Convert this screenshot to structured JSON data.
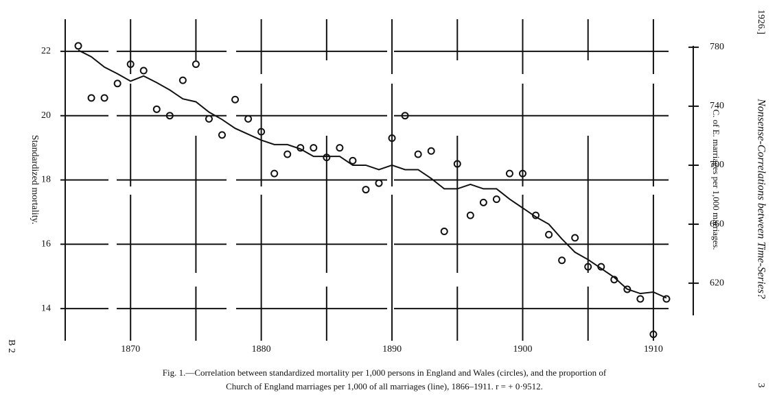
{
  "page_header": "1926.]",
  "running_title": "Nonsense-Correlations between Time-Series?",
  "signature": "B 2",
  "page_number": "3",
  "caption": [
    "Fig. 1.—Correlation between standardized mortality per 1,000 persons in England and Wales (circles), and the proportion of",
    "Church of England marriages per 1,000 of all marriages (line), 1866–1911.   r = + 0·9512."
  ],
  "chart_data": {
    "type": "line",
    "y_label": "Standardized mortality.",
    "y2_label": "C. of E. marriages per 1,000 marriages.",
    "x": [
      1866,
      1867,
      1868,
      1869,
      1870,
      1871,
      1872,
      1873,
      1874,
      1875,
      1876,
      1877,
      1878,
      1879,
      1880,
      1881,
      1882,
      1883,
      1884,
      1885,
      1886,
      1887,
      1888,
      1889,
      1890,
      1891,
      1892,
      1893,
      1894,
      1895,
      1896,
      1897,
      1898,
      1899,
      1900,
      1901,
      1902,
      1903,
      1904,
      1905,
      1906,
      1907,
      1908,
      1909,
      1910,
      1911
    ],
    "xlim": [
      1865,
      1912
    ],
    "xticks": [
      1870,
      1880,
      1890,
      1900,
      1910
    ],
    "x_minor_grid": [
      1875,
      1885,
      1895,
      1905
    ],
    "ylim": [
      13,
      23
    ],
    "yticks": [
      14,
      16,
      18,
      20,
      22
    ],
    "y2lim": [
      581,
      799
    ],
    "y2ticks": [
      620,
      660,
      700,
      740,
      780
    ],
    "grid": true,
    "series": [
      {
        "type": "scatter",
        "color": "#111111",
        "values": [
          22.17,
          20.55,
          20.55,
          21.0,
          21.6,
          21.4,
          20.2,
          20.0,
          21.1,
          21.6,
          19.9,
          19.4,
          20.5,
          19.9,
          19.5,
          18.2,
          18.8,
          19.0,
          19.0,
          18.7,
          19.0,
          18.6,
          17.7,
          17.9,
          19.3,
          20.0,
          18.8,
          18.9,
          16.4,
          18.5,
          16.9,
          17.3,
          17.4,
          18.2,
          18.2,
          16.9,
          16.3,
          15.5,
          16.2,
          15.3,
          15.3,
          14.9,
          14.6,
          14.3,
          13.2,
          14.3
        ]
      },
      {
        "type": "line",
        "axis": "y2",
        "color": "#111111",
        "values": [
          778,
          773.5,
          766.5,
          762,
          757,
          760.5,
          756,
          751,
          745,
          743,
          736,
          731,
          725,
          721,
          717,
          714,
          714,
          711,
          706,
          706,
          706,
          700,
          700,
          697,
          700,
          697,
          697,
          691,
          684,
          684,
          687,
          684,
          684,
          677,
          671,
          665,
          660,
          650,
          641,
          636,
          630,
          624,
          616,
          613,
          614,
          610
        ]
      }
    ]
  }
}
